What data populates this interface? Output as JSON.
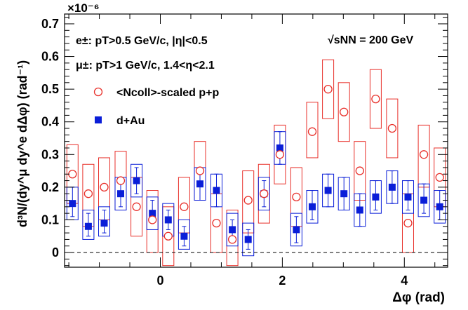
{
  "chart_data": {
    "type": "scatter",
    "x_axis_label": "Δφ (rad)",
    "y_axis_label": "d³N/(dy^μ dy^e dΔφ) (rad⁻¹)",
    "y_exponent": "×10⁻⁶",
    "xlim": [
      -1.57,
      4.71
    ],
    "ylim": [
      -0.045,
      0.73
    ],
    "x_ticks": [
      0,
      2,
      4
    ],
    "y_ticks": [
      0,
      0.1,
      0.2,
      0.3,
      0.4,
      0.5,
      0.6,
      0.7
    ],
    "x_tick_labels": [
      "0",
      "2",
      "4"
    ],
    "y_tick_labels": [
      "0",
      "0.1",
      "0.2",
      "0.3",
      "0.4",
      "0.5",
      "0.6",
      "0.7"
    ],
    "zero_line": "dashed",
    "annotations": {
      "electron_cut": "e±: pT>0.5 GeV/c, |η|<0.5",
      "muon_cut": "μ±: pT>1 GeV/c, 1.4<η<2.1",
      "energy": "√sNN = 200 GeV"
    },
    "legend": [
      "<Ncoll>-scaled p+p",
      "d+Au"
    ],
    "series": [
      {
        "name": "<Ncoll>-scaled p+p",
        "marker": "open-circle",
        "color": "#e8302a",
        "x": [
          -1.44,
          -1.18,
          -0.92,
          -0.65,
          -0.39,
          -0.13,
          0.13,
          0.39,
          0.65,
          0.92,
          1.18,
          1.44,
          1.7,
          1.96,
          2.23,
          2.49,
          2.75,
          3.01,
          3.27,
          3.53,
          3.8,
          4.06,
          4.32,
          4.58
        ],
        "y": [
          0.24,
          0.18,
          0.2,
          0.22,
          0.14,
          0.1,
          0.05,
          0.14,
          0.25,
          0.09,
          0.04,
          0.16,
          0.18,
          0.3,
          0.17,
          0.37,
          0.5,
          0.43,
          0.25,
          0.47,
          0.38,
          0.09,
          0.3,
          0.23
        ],
        "sys_low": [
          0.15,
          0.08,
          0.1,
          0.13,
          0.05,
          0.0,
          -0.04,
          0.06,
          0.16,
          0.0,
          -0.04,
          0.06,
          0.09,
          0.21,
          0.08,
          0.29,
          0.41,
          0.34,
          0.16,
          0.38,
          0.29,
          0.0,
          0.2,
          0.14
        ],
        "sys_high": [
          0.33,
          0.27,
          0.29,
          0.31,
          0.23,
          0.19,
          0.14,
          0.23,
          0.34,
          0.18,
          0.13,
          0.25,
          0.27,
          0.39,
          0.26,
          0.46,
          0.59,
          0.52,
          0.34,
          0.56,
          0.47,
          0.18,
          0.39,
          0.32
        ]
      },
      {
        "name": "d+Au",
        "marker": "filled-square",
        "color": "#0a1ed8",
        "x": [
          -1.44,
          -1.18,
          -0.92,
          -0.65,
          -0.39,
          -0.13,
          0.13,
          0.39,
          0.65,
          0.92,
          1.18,
          1.44,
          1.7,
          1.96,
          2.23,
          2.49,
          2.75,
          3.01,
          3.27,
          3.53,
          3.8,
          4.06,
          4.32,
          4.58
        ],
        "y": [
          0.15,
          0.08,
          0.09,
          0.18,
          0.22,
          0.12,
          0.1,
          0.05,
          0.21,
          0.19,
          0.07,
          0.04,
          0.18,
          0.32,
          0.07,
          0.14,
          0.19,
          0.18,
          0.13,
          0.17,
          0.2,
          0.17,
          0.16,
          0.14
        ],
        "stat_low": [
          0.11,
          0.05,
          0.06,
          0.14,
          0.18,
          0.09,
          0.07,
          0.02,
          0.16,
          0.14,
          0.04,
          0.01,
          0.14,
          0.27,
          0.03,
          0.1,
          0.14,
          0.13,
          0.08,
          0.13,
          0.15,
          0.13,
          0.12,
          0.1
        ],
        "stat_high": [
          0.2,
          0.12,
          0.13,
          0.23,
          0.26,
          0.16,
          0.13,
          0.08,
          0.25,
          0.24,
          0.1,
          0.07,
          0.22,
          0.37,
          0.11,
          0.19,
          0.24,
          0.23,
          0.18,
          0.22,
          0.25,
          0.22,
          0.21,
          0.19
        ],
        "sys_low": [
          0.1,
          0.04,
          0.05,
          0.13,
          0.17,
          0.07,
          0.05,
          0.01,
          0.16,
          0.14,
          0.02,
          -0.01,
          0.13,
          0.27,
          0.02,
          0.09,
          0.14,
          0.13,
          0.08,
          0.12,
          0.15,
          0.12,
          0.11,
          0.09
        ],
        "sys_high": [
          0.2,
          0.13,
          0.14,
          0.23,
          0.27,
          0.17,
          0.15,
          0.1,
          0.26,
          0.24,
          0.12,
          0.09,
          0.23,
          0.37,
          0.12,
          0.19,
          0.24,
          0.23,
          0.18,
          0.22,
          0.25,
          0.22,
          0.21,
          0.19
        ]
      }
    ]
  }
}
